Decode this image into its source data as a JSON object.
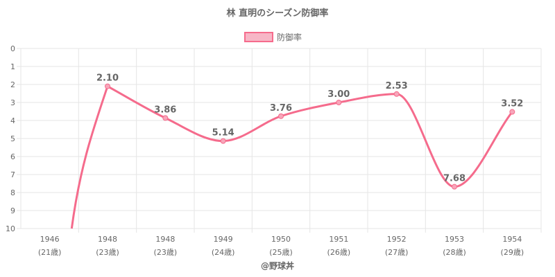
{
  "chart_data": {
    "type": "line",
    "title": "林 直明のシーズン防御率",
    "legend": {
      "label": "防御率",
      "placement": "top-center"
    },
    "credit": "@野球丼",
    "categories": [
      [
        "1946",
        "(21歳)"
      ],
      [
        "1948",
        "(23歳)"
      ],
      [
        "1948",
        "(23歳)"
      ],
      [
        "1949",
        "(24歳)"
      ],
      [
        "1950",
        "(25歳)"
      ],
      [
        "1951",
        "(26歳)"
      ],
      [
        "1952",
        "(27歳)"
      ],
      [
        "1953",
        "(28歳)"
      ],
      [
        "1954",
        "(29歳)"
      ]
    ],
    "series": [
      {
        "name": "防御率",
        "values": [
          null,
          2.1,
          3.86,
          5.14,
          3.76,
          3.0,
          2.53,
          7.68,
          3.52
        ],
        "labels": [
          "",
          "2.10",
          "3.86",
          "5.14",
          "3.76",
          "3.00",
          "2.53",
          "7.68",
          "3.52"
        ]
      }
    ],
    "yaxis": {
      "min": 0,
      "max": 10,
      "step": 1,
      "reversed": true
    },
    "grid": true,
    "colors": {
      "line": "#f56b8c",
      "point": "#f7a6ba",
      "legend_fill": "#f7b6c6",
      "grid": "#e5e5e5",
      "text": "#666666"
    }
  }
}
